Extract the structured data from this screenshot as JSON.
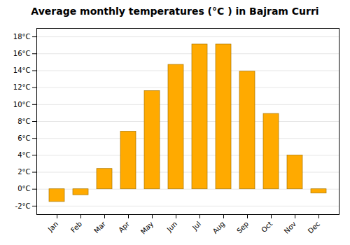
{
  "chart_data": {
    "type": "bar",
    "title": "Average monthly temperatures (°C ) in Bajram Curri",
    "categories": [
      "Jan",
      "Feb",
      "Mar",
      "Apr",
      "May",
      "Jun",
      "Jul",
      "Aug",
      "Sep",
      "Oct",
      "Nov",
      "Dec"
    ],
    "values": [
      -1.5,
      -0.7,
      2.4,
      6.8,
      11.6,
      14.7,
      17.1,
      17.1,
      13.9,
      8.9,
      4.0,
      -0.5
    ],
    "color": "#FFAA00",
    "ylim": [
      -3,
      19
    ],
    "yticks": [
      {
        "value": -2,
        "label": "-2°C"
      },
      {
        "value": 0,
        "label": "0°C"
      },
      {
        "value": 2,
        "label": "2°C"
      },
      {
        "value": 4,
        "label": "4°C"
      },
      {
        "value": 6,
        "label": "6°C"
      },
      {
        "value": 8,
        "label": "8°C"
      },
      {
        "value": 10,
        "label": "10°C"
      },
      {
        "value": 12,
        "label": "12°C"
      },
      {
        "value": 14,
        "label": "14°C"
      },
      {
        "value": 16,
        "label": "16°C"
      },
      {
        "value": 18,
        "label": "18°C"
      }
    ],
    "grid": true
  }
}
